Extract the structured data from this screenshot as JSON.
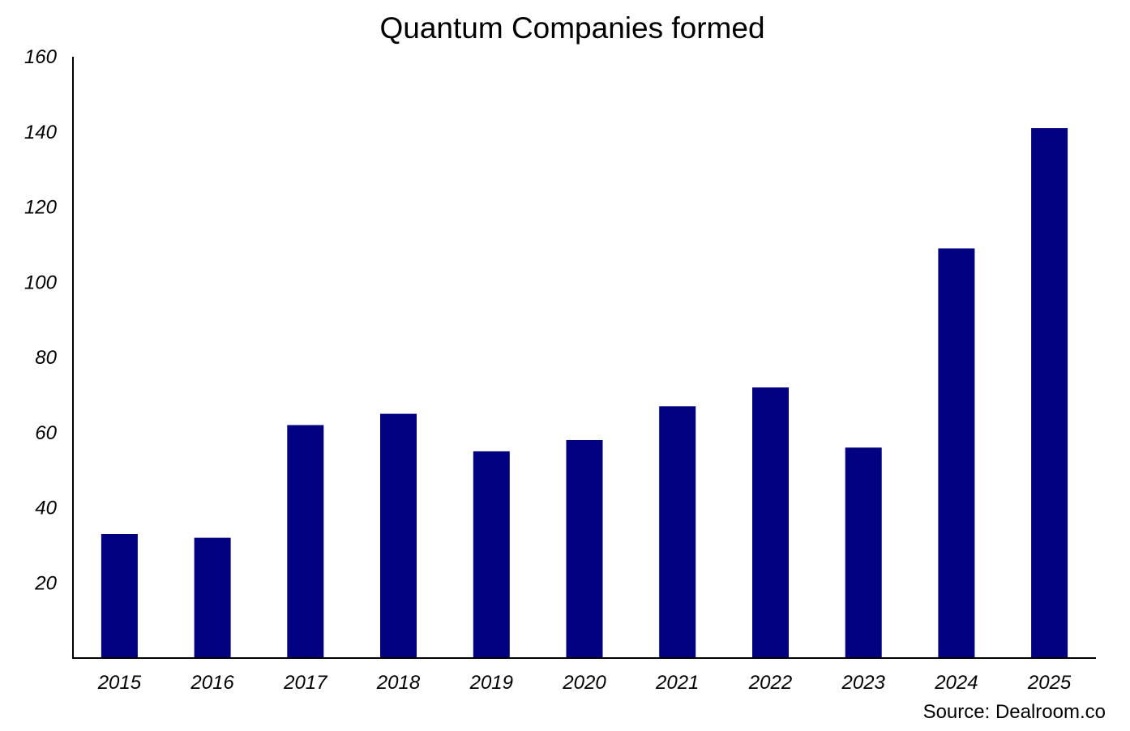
{
  "chart_data": {
    "type": "bar",
    "title": "Quantum Companies formed",
    "xlabel": "",
    "ylabel": "",
    "categories": [
      "2015",
      "2016",
      "2017",
      "2018",
      "2019",
      "2020",
      "2021",
      "2022",
      "2023",
      "2024",
      "2025"
    ],
    "values": [
      33,
      32,
      62,
      65,
      55,
      58,
      67,
      72,
      56,
      109,
      141
    ],
    "ylim": [
      0,
      160
    ],
    "yticks": [
      20,
      40,
      60,
      80,
      100,
      120,
      140,
      160
    ],
    "grid": false,
    "legend": "none",
    "bar_color": "#000080",
    "source": "Source: Dealroom.co"
  }
}
